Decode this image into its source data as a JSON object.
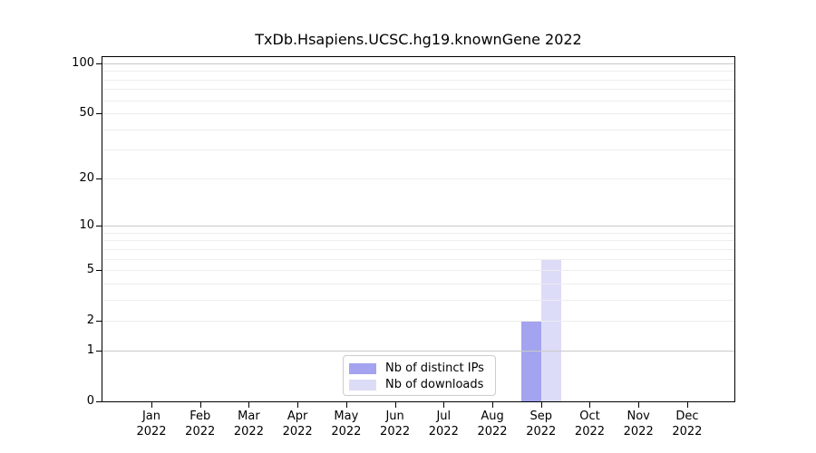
{
  "chart_data": {
    "type": "bar",
    "title": "TxDb.Hsapiens.UCSC.hg19.knownGene 2022",
    "categories": [
      {
        "month": "Jan",
        "year": "2022"
      },
      {
        "month": "Feb",
        "year": "2022"
      },
      {
        "month": "Mar",
        "year": "2022"
      },
      {
        "month": "Apr",
        "year": "2022"
      },
      {
        "month": "May",
        "year": "2022"
      },
      {
        "month": "Jun",
        "year": "2022"
      },
      {
        "month": "Jul",
        "year": "2022"
      },
      {
        "month": "Aug",
        "year": "2022"
      },
      {
        "month": "Sep",
        "year": "2022"
      },
      {
        "month": "Oct",
        "year": "2022"
      },
      {
        "month": "Nov",
        "year": "2022"
      },
      {
        "month": "Dec",
        "year": "2022"
      }
    ],
    "series": [
      {
        "name": "Nb of distinct IPs",
        "legend_color": "#a3a3f0",
        "bar_color": "rgba(140,140,236,0.8)",
        "values": [
          0,
          0,
          0,
          0,
          0,
          0,
          0,
          0,
          2,
          0,
          0,
          0
        ]
      },
      {
        "name": "Nb of downloads",
        "legend_color": "#dcdcf7",
        "bar_color": "rgba(211,211,246,0.8)",
        "values": [
          0,
          0,
          0,
          0,
          0,
          0,
          0,
          0,
          6,
          0,
          0,
          0
        ]
      }
    ],
    "yscale": "log1p",
    "ylim": [
      0,
      110
    ],
    "y_ticks": [
      0,
      1,
      2,
      5,
      10,
      20,
      50,
      100
    ],
    "grid_decade_lines": [
      1,
      10,
      100
    ],
    "grid_minor_lines": [
      2,
      3,
      4,
      5,
      6,
      7,
      8,
      9,
      20,
      30,
      40,
      50,
      60,
      70,
      80,
      90
    ],
    "legend_position": "lower center",
    "grid": true
  },
  "colors": {
    "axis": "#000000",
    "text": "#000000",
    "background": "#ffffff",
    "decade_grid": "#c9c9c9",
    "minor_grid": "#ededed",
    "legend_border": "#cccccc"
  }
}
